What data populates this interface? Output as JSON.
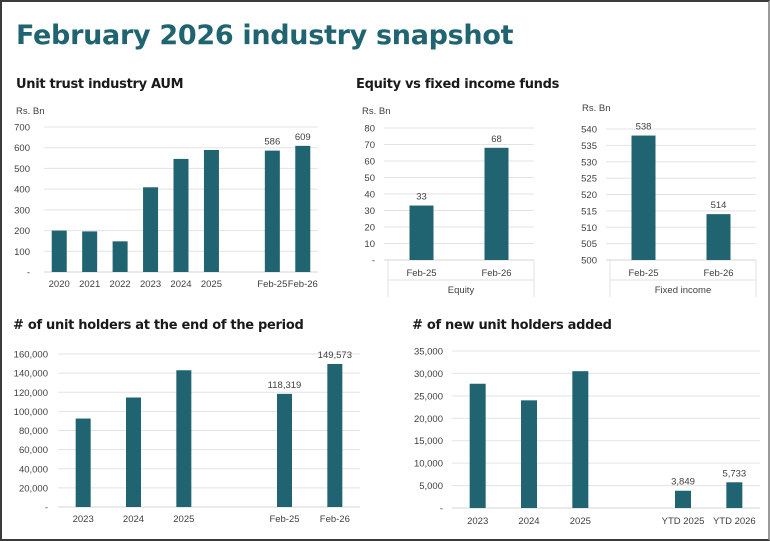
{
  "page": {
    "title": "February 2026 industry snapshot",
    "colors": {
      "title": "#1f6470",
      "bar": "#1f6470",
      "text": "#1a1a1a",
      "grid": "#e3e3e3"
    }
  },
  "chart_data": [
    {
      "id": "aum",
      "type": "bar",
      "title": "Unit trust industry AUM",
      "unit_label": "Rs. Bn",
      "xlabel": "",
      "ylabel": "Rs. Bn",
      "categories": [
        "2020",
        "2021",
        "2022",
        "2023",
        "2024",
        "2025",
        "",
        "Feb-25",
        "Feb-26"
      ],
      "values": [
        200,
        196,
        148,
        409,
        546,
        589,
        null,
        586,
        609
      ],
      "data_labels": [
        "",
        "",
        "",
        "",
        "",
        "",
        "",
        "586",
        "609"
      ],
      "ylim": [
        0,
        700
      ],
      "yticks": [
        0,
        100,
        200,
        300,
        400,
        500,
        600,
        700
      ],
      "ytick_labels": [
        "-",
        "100",
        "200",
        "300",
        "400",
        "500",
        "600",
        "700"
      ],
      "grid": true,
      "legend": "none"
    },
    {
      "id": "equity",
      "type": "bar",
      "title": "Equity vs fixed income funds",
      "unit_label": "Rs. Bn",
      "xlabel": "Equity",
      "ylabel": "Rs. Bn",
      "categories": [
        "Feb-25",
        "Feb-26"
      ],
      "values": [
        33,
        68
      ],
      "data_labels": [
        "33",
        "68"
      ],
      "ylim": [
        0,
        80
      ],
      "yticks": [
        0,
        10,
        20,
        30,
        40,
        50,
        60,
        70,
        80
      ],
      "ytick_labels": [
        "-",
        "10",
        "20",
        "30",
        "40",
        "50",
        "60",
        "70",
        "80"
      ],
      "grid": true,
      "legend": "none"
    },
    {
      "id": "fixed",
      "type": "bar",
      "title": "",
      "unit_label": "Rs. Bn",
      "xlabel": "Fixed income",
      "ylabel": "Rs. Bn",
      "categories": [
        "Feb-25",
        "Feb-26"
      ],
      "values": [
        538,
        514
      ],
      "data_labels": [
        "538",
        "514"
      ],
      "ylim": [
        500,
        540
      ],
      "yticks": [
        500,
        505,
        510,
        515,
        520,
        525,
        530,
        535,
        540
      ],
      "ytick_labels": [
        "500",
        "505",
        "510",
        "515",
        "520",
        "525",
        "530",
        "535",
        "540"
      ],
      "grid": true,
      "legend": "none"
    },
    {
      "id": "holders",
      "type": "bar",
      "title": "# of unit holders at the end of the period",
      "xlabel": "",
      "ylabel": "",
      "categories": [
        "2023",
        "2024",
        "2025",
        "",
        "Feb-25",
        "Feb-26"
      ],
      "values": [
        92500,
        114500,
        143000,
        null,
        118319,
        149573
      ],
      "data_labels": [
        "",
        "",
        "",
        "",
        "118,319",
        "149,573"
      ],
      "ylim": [
        0,
        160000
      ],
      "yticks": [
        0,
        20000,
        40000,
        60000,
        80000,
        100000,
        120000,
        140000,
        160000
      ],
      "ytick_labels": [
        "-",
        "20,000",
        "40,000",
        "60,000",
        "80,000",
        "100,000",
        "120,000",
        "140,000",
        "160,000"
      ],
      "grid": true,
      "legend": "none"
    },
    {
      "id": "new_holders",
      "type": "bar",
      "title": "# of new unit holders added",
      "xlabel": "",
      "ylabel": "",
      "categories": [
        "2023",
        "2024",
        "2025",
        "",
        "YTD 2025",
        "YTD 2026"
      ],
      "values": [
        27700,
        24000,
        30500,
        null,
        3849,
        5733
      ],
      "data_labels": [
        "",
        "",
        "",
        "",
        "3,849",
        "5,733"
      ],
      "ylim": [
        0,
        35000
      ],
      "yticks": [
        0,
        5000,
        10000,
        15000,
        20000,
        25000,
        30000,
        35000
      ],
      "ytick_labels": [
        "-",
        "5,000",
        "10,000",
        "15,000",
        "20,000",
        "25,000",
        "30,000",
        "35,000"
      ],
      "grid": true,
      "legend": "none"
    }
  ]
}
